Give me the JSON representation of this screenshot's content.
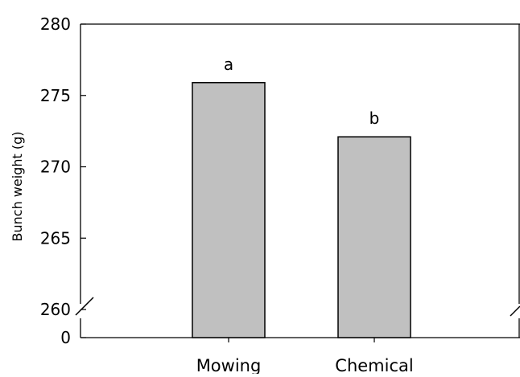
{
  "chart_data": {
    "type": "bar",
    "categories": [
      "Mowing",
      "Chemical"
    ],
    "values": [
      275.9,
      272.1
    ],
    "significance_labels": [
      "a",
      "b"
    ],
    "ylabel": "Bunch weight (g)",
    "xlabel": "",
    "y_ticks_upper": [
      "280",
      "275",
      "270",
      "265",
      "260"
    ],
    "y_tick_values_upper": [
      280,
      275,
      270,
      265,
      260
    ],
    "y_tick_bottom": "0",
    "ylim": [
      260,
      280
    ],
    "axis_break": true,
    "grid": false,
    "legend": "none",
    "colors": {
      "bar_fill": "#c0c0c0",
      "bar_stroke": "#000000",
      "axis": "#000000"
    }
  }
}
